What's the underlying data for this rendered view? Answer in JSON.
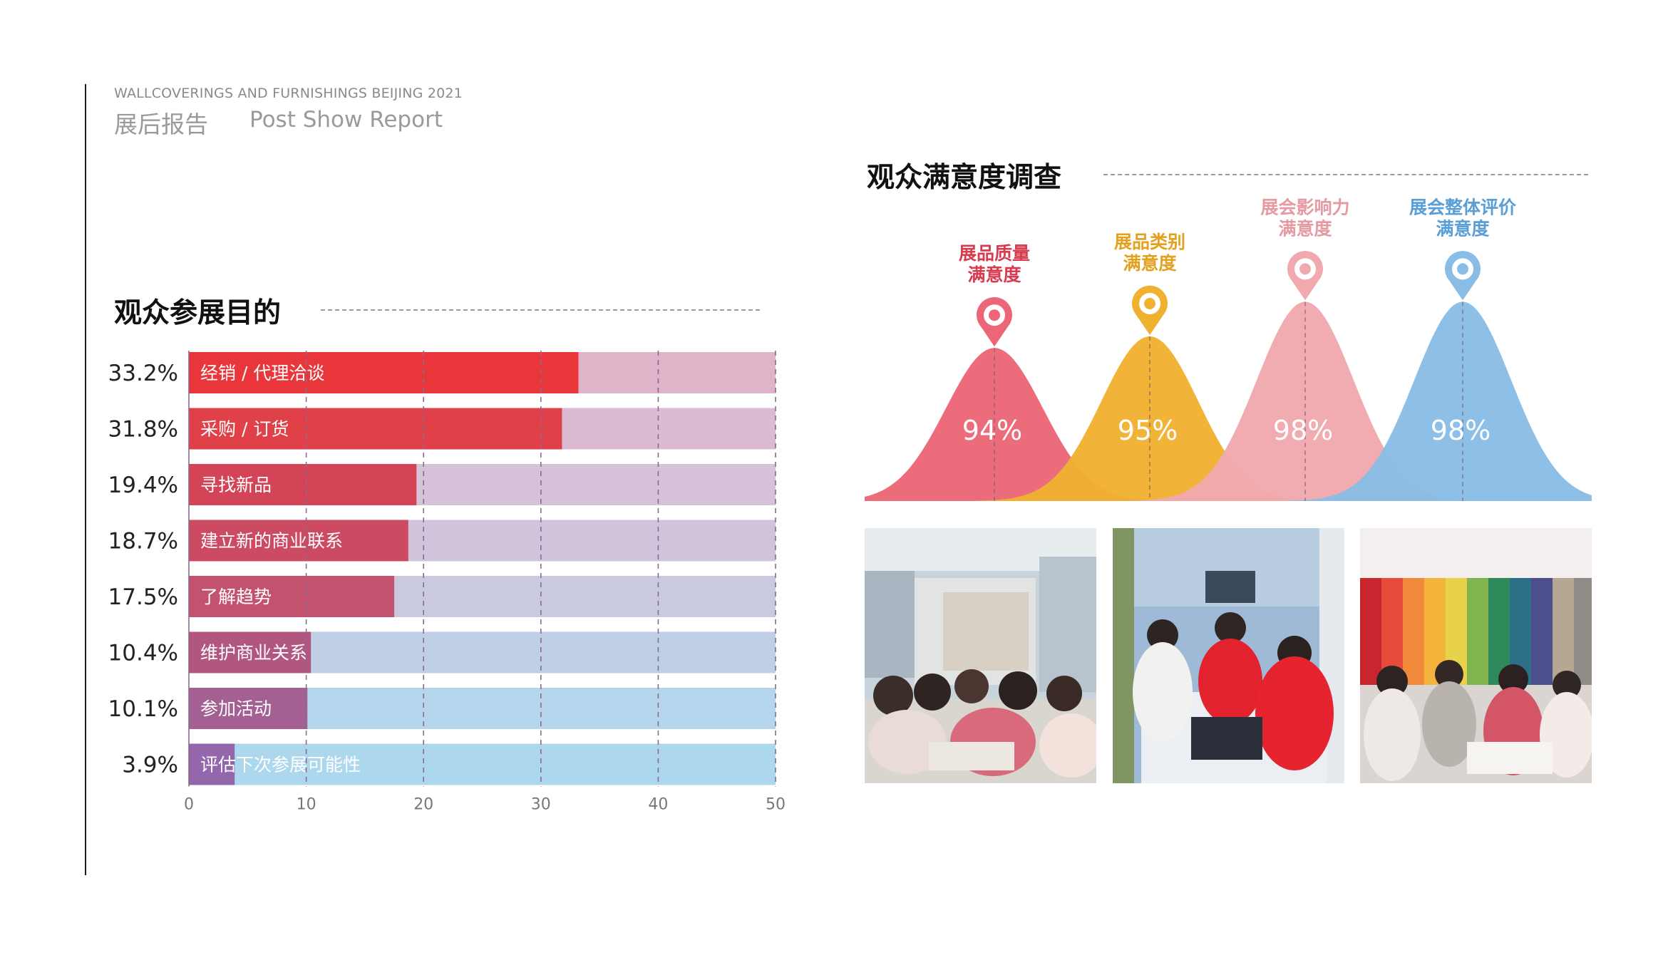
{
  "header": {
    "subtitle": "WALLCOVERINGS AND FURNISHINGS BEIJING 2021",
    "title_cn": "展后报告",
    "title_en": "Post Show Report"
  },
  "purpose_section": {
    "title": "观众参展目的"
  },
  "satisfaction_section": {
    "title": "观众满意度调查"
  },
  "chart_data": [
    {
      "type": "bar",
      "orientation": "horizontal",
      "title": "观众参展目的",
      "categories": [
        "经销 / 代理洽谈",
        "采购 / 订货",
        "寻找新品",
        "建立新的商业联系",
        "了解趋势",
        "维护商业关系",
        "参加活动",
        "评估下次参展可能性"
      ],
      "values": [
        33.2,
        31.8,
        19.4,
        18.7,
        17.5,
        10.4,
        10.1,
        3.9
      ],
      "value_labels": [
        "33.2%",
        "31.8%",
        "19.4%",
        "18.7%",
        "17.5%",
        "10.4%",
        "10.1%",
        "3.9%"
      ],
      "xlim": [
        0,
        50
      ],
      "xticks": [
        0,
        10,
        20,
        30,
        40,
        50
      ],
      "grid": true,
      "bar_colors": [
        "#e8363a",
        "#e04148",
        "#d44457",
        "#cd4a63",
        "#c3526e",
        "#b1567f",
        "#a45f93",
        "#9467ac"
      ],
      "track_colors": [
        "#e0b4c8",
        "#dabbd2",
        "#d7c3d9",
        "#d0c4dc",
        "#c9c9e0",
        "#bfd0e6",
        "#b4d5ec",
        "#acd7ed"
      ]
    },
    {
      "type": "area",
      "title": "观众满意度调查",
      "series": [
        {
          "name": "展品质量满意度",
          "label_lines": [
            "展品质量",
            "满意度"
          ],
          "value": 94,
          "value_label": "94%",
          "color": "#ec6677",
          "label_color": "#d83a4f"
        },
        {
          "name": "展品类别满意度",
          "label_lines": [
            "展品类别",
            "满意度"
          ],
          "value": 95,
          "value_label": "95%",
          "color": "#f0b131",
          "label_color": "#e3a11e"
        },
        {
          "name": "展会影响力满意度",
          "label_lines": [
            "展会影响力",
            "满意度"
          ],
          "value": 98,
          "value_label": "98%",
          "color": "#f0a9ae",
          "label_color": "#e59aa2"
        },
        {
          "name": "展会整体评价满意度",
          "label_lines": [
            "展会整体评价",
            "满意度"
          ],
          "value": 98,
          "value_label": "98%",
          "color": "#89bde6",
          "label_color": "#5a9ed6"
        }
      ]
    }
  ],
  "photos": [
    {
      "name": "photo-visitors-browsing"
    },
    {
      "name": "photo-booth-staff"
    },
    {
      "name": "photo-curtain-samples"
    }
  ]
}
